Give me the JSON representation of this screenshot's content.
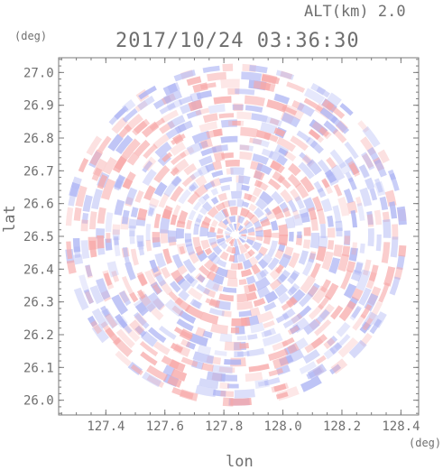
{
  "header": {
    "altitude": "ALT(km) 2.0",
    "timestamp": "2017/10/24 03:36:30"
  },
  "colors": {
    "positive": "#f7a7a7",
    "negative": "#aab1f3",
    "neutral": "#ffffff",
    "frame": "#7a7a7a",
    "text": "#6f6f6f"
  },
  "chart_data": {
    "type": "heatmap",
    "title": "2017/10/24 03:36:30",
    "subtitle": "ALT(km) 2.0",
    "xlabel": "lon",
    "ylabel": "lat",
    "x_unit": "(deg)",
    "y_unit": "(deg)",
    "xlim": [
      127.24,
      128.46
    ],
    "ylim": [
      25.955,
      27.045
    ],
    "xticks": [
      127.4,
      127.6,
      127.8,
      128.0,
      128.2,
      128.4
    ],
    "xtick_labels": [
      "127.4",
      "127.6",
      "127.8",
      "128.0",
      "128.2",
      "128.4"
    ],
    "yticks": [
      26.0,
      26.1,
      26.2,
      26.3,
      26.4,
      26.5,
      26.6,
      26.7,
      26.8,
      26.9,
      27.0
    ],
    "ytick_labels": [
      "26.0",
      "26.1",
      "26.2",
      "26.3",
      "26.4",
      "26.5",
      "26.6",
      "26.7",
      "26.8",
      "26.9",
      "27.0"
    ],
    "field": {
      "center": [
        127.84,
        26.505
      ],
      "radius_deg_lat": 0.535,
      "pattern": "alternating positive/negative anomaly arcs in a circular radar scan"
    },
    "grid": false
  }
}
